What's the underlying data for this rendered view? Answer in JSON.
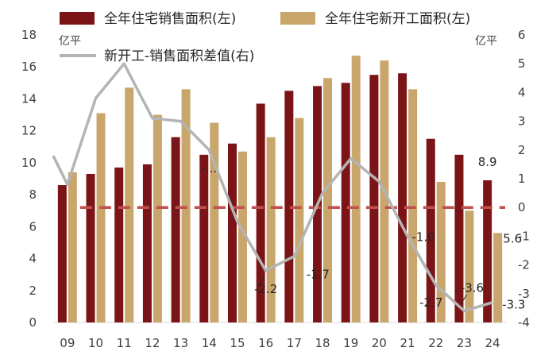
{
  "chart_data": {
    "type": "bar",
    "categories": [
      "09",
      "10",
      "11",
      "12",
      "13",
      "14",
      "15",
      "16",
      "17",
      "18",
      "19",
      "20",
      "21",
      "22",
      "23",
      "24"
    ],
    "series": [
      {
        "name": "全年住宅销售面积(左)",
        "type": "bar",
        "axis": "left",
        "color": "#7B1416",
        "values": [
          8.6,
          9.3,
          9.7,
          9.9,
          11.6,
          10.5,
          11.2,
          13.7,
          14.5,
          14.8,
          15.0,
          15.5,
          15.6,
          11.5,
          10.5,
          8.9
        ]
      },
      {
        "name": "全年住宅新开工面积(左)",
        "type": "bar",
        "axis": "left",
        "color": "#C9A66B",
        "values": [
          9.4,
          13.1,
          14.7,
          13.0,
          14.6,
          12.5,
          10.7,
          11.6,
          12.8,
          15.3,
          16.7,
          16.4,
          14.6,
          8.8,
          7.0,
          5.6
        ]
      },
      {
        "name": "新开工-销售面积差值(右)",
        "type": "line",
        "axis": "right",
        "color": "#B4B4B4",
        "values": [
          0.8,
          3.8,
          5.0,
          3.1,
          3.0,
          2.0,
          -0.5,
          -2.2,
          -1.7,
          0.5,
          1.7,
          0.9,
          -1.0,
          -2.7,
          -3.6,
          -3.3
        ],
        "x_start": 8.5,
        "start_value": 1.8
      }
    ],
    "reference_line": {
      "axis": "right",
      "value": 0,
      "color": "#C0504D",
      "style": "dashed"
    },
    "y_left": {
      "ylim": [
        0,
        18
      ],
      "ticks": [
        0,
        2,
        4,
        6,
        8,
        10,
        12,
        14,
        16,
        18
      ],
      "unit": "亿平"
    },
    "y_right": {
      "ylim": [
        -4,
        6
      ],
      "ticks": [
        -4,
        -3,
        -2,
        -1,
        0,
        1,
        2,
        3,
        4,
        5,
        6
      ],
      "unit": "亿平"
    },
    "legend_position": "top",
    "data_labels": [
      {
        "series": 0,
        "index": 15,
        "text": "8.9",
        "anchor": "bar-top"
      },
      {
        "series": 1,
        "index": 15,
        "text": "5.6",
        "anchor": "bar-right"
      },
      {
        "series": 2,
        "index": 5,
        "text": "-...",
        "anchor": "below"
      },
      {
        "series": 2,
        "index": 7,
        "text": "-2.2",
        "anchor": "below",
        "leader": true
      },
      {
        "series": 2,
        "index": 8,
        "text": "-1.7",
        "anchor": "below-right"
      },
      {
        "series": 2,
        "index": 12,
        "text": "-1.0",
        "anchor": "right"
      },
      {
        "series": 2,
        "index": 13,
        "text": "-2.7",
        "anchor": "below-left"
      },
      {
        "series": 2,
        "index": 14,
        "text": "-3.6",
        "anchor": "above-right",
        "leader": true
      },
      {
        "series": 2,
        "index": 15,
        "text": "-3.3",
        "anchor": "right"
      }
    ]
  }
}
